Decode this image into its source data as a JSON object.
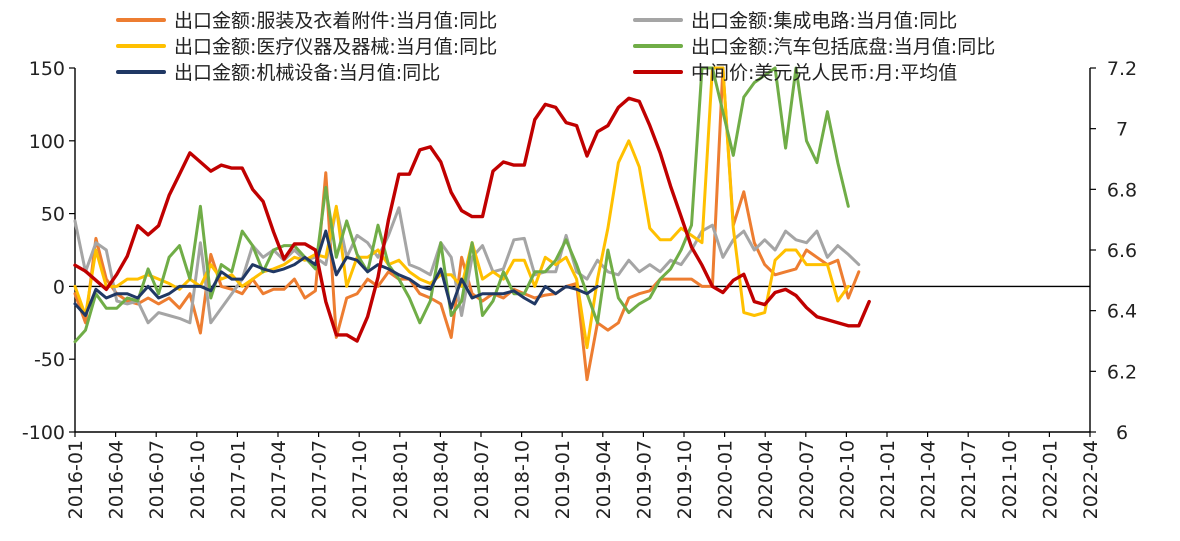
{
  "chart_data": {
    "type": "line",
    "title": "",
    "xlabel": "",
    "ylabel": "",
    "y2label": "",
    "ylim": [
      -100,
      150
    ],
    "y2lim": [
      6.0,
      7.2
    ],
    "yticks": [
      "150",
      "100",
      "50",
      "0",
      "-50",
      "-100"
    ],
    "y2ticks": [
      "7.2",
      "7",
      "6.8",
      "6.6",
      "6.4",
      "6.2",
      "6"
    ],
    "xticks": [
      "2016-01",
      "2016-04",
      "2016-07",
      "2016-10",
      "2017-01",
      "2017-04",
      "2017-07",
      "2017-10",
      "2018-01",
      "2018-04",
      "2018-07",
      "2018-10",
      "2019-01",
      "2019-04",
      "2019-07",
      "2019-10",
      "2020-01",
      "2020-04",
      "2020-07",
      "2020-10",
      "2021-01",
      "2021-04",
      "2021-07",
      "2021-10",
      "2022-01",
      "2022-04"
    ],
    "legend_position": "top",
    "series": [
      {
        "name": "出口金额:服装及衣着附件:当月值:同比",
        "color": "#ED7D31",
        "axis": "left",
        "values": [
          -5,
          -25,
          33,
          5,
          -5,
          -10,
          -12,
          -8,
          -12,
          -8,
          -15,
          -5,
          -32,
          22,
          0,
          -2,
          -5,
          5,
          -5,
          -2,
          -2,
          5,
          -8,
          -3,
          78,
          -35,
          -8,
          -5,
          5,
          0,
          10,
          5,
          5,
          -5,
          -8,
          -12,
          -35,
          20,
          -5,
          -10,
          -5,
          -8,
          -2,
          -5,
          -8,
          -6,
          -5,
          0,
          2,
          -64,
          -25,
          -30,
          -25,
          -8,
          -5,
          -3,
          5,
          5,
          5,
          5,
          0,
          0,
          150,
          42,
          65,
          30,
          15,
          8,
          10,
          12,
          25,
          20,
          15,
          18,
          -8,
          10
        ]
      },
      {
        "name": "出口金额:集成电路:当月值:同比",
        "color": "#A5A5A5",
        "axis": "left",
        "values": [
          45,
          10,
          30,
          25,
          -10,
          -12,
          -10,
          -25,
          -18,
          -20,
          -22,
          -25,
          30,
          -25,
          -15,
          -5,
          5,
          28,
          20,
          25,
          18,
          25,
          18,
          20,
          15,
          54,
          20,
          35,
          30,
          20,
          35,
          54,
          15,
          12,
          8,
          30,
          20,
          -20,
          20,
          28,
          10,
          12,
          32,
          33,
          8,
          10,
          10,
          35,
          10,
          5,
          18,
          10,
          8,
          18,
          10,
          15,
          10,
          18,
          15,
          25,
          38,
          42,
          20,
          32,
          38,
          25,
          32,
          25,
          38,
          32,
          30,
          38,
          20,
          28,
          22,
          15
        ]
      },
      {
        "name": "出口金额:医疗仪器及器械:当月值:同比",
        "color": "#FFC000",
        "axis": "left",
        "values": [
          0,
          -20,
          25,
          0,
          0,
          5,
          5,
          8,
          5,
          2,
          -2,
          5,
          0,
          15,
          5,
          8,
          0,
          5,
          10,
          12,
          15,
          20,
          18,
          22,
          20,
          55,
          0,
          20,
          20,
          25,
          15,
          18,
          10,
          5,
          2,
          8,
          8,
          0,
          30,
          5,
          10,
          5,
          18,
          18,
          0,
          20,
          15,
          20,
          5,
          -42,
          5,
          40,
          85,
          100,
          82,
          40,
          32,
          32,
          40,
          35,
          30,
          150,
          150,
          40,
          -18,
          -20,
          -18,
          18,
          25,
          25,
          15,
          15,
          15,
          -10,
          0
        ]
      },
      {
        "name": "出口金额:汽车包括底盘:当月值:同比",
        "color": "#70AD47",
        "axis": "left",
        "values": [
          -38,
          -30,
          -5,
          -15,
          -15,
          -8,
          -10,
          12,
          -5,
          20,
          28,
          5,
          55,
          -8,
          15,
          10,
          38,
          28,
          10,
          25,
          28,
          28,
          20,
          12,
          68,
          20,
          45,
          22,
          10,
          42,
          15,
          5,
          -8,
          -25,
          -10,
          30,
          -20,
          -10,
          30,
          -20,
          -10,
          10,
          -5,
          -5,
          10,
          10,
          18,
          32,
          15,
          -5,
          -25,
          25,
          -8,
          -18,
          -12,
          -8,
          5,
          12,
          25,
          42,
          150,
          150,
          120,
          90,
          130,
          140,
          145,
          150,
          95,
          150,
          100,
          85,
          120,
          85,
          55
        ]
      },
      {
        "name": "出口金额:机械设备:当月值:同比",
        "color": "#203864",
        "axis": "left",
        "values": [
          -12,
          -20,
          -2,
          -8,
          -5,
          -5,
          -8,
          0,
          -8,
          -5,
          0,
          0,
          0,
          -3,
          10,
          5,
          5,
          15,
          12,
          10,
          12,
          15,
          20,
          15,
          38,
          8,
          20,
          18,
          10,
          15,
          12,
          8,
          5,
          0,
          -2,
          12,
          -15,
          5,
          -8,
          -5,
          -5,
          -5,
          -3,
          -8,
          -12,
          0,
          -5,
          0,
          -2,
          -5,
          0
        ]
      },
      {
        "name": "中间价:美元兑人民币:月:平均值",
        "color": "#C00000",
        "axis": "right",
        "values": [
          6.55,
          6.53,
          6.5,
          6.47,
          6.52,
          6.58,
          6.68,
          6.65,
          6.68,
          6.78,
          6.85,
          6.92,
          6.89,
          6.86,
          6.88,
          6.87,
          6.87,
          6.8,
          6.76,
          6.66,
          6.57,
          6.62,
          6.62,
          6.6,
          6.43,
          6.32,
          6.32,
          6.3,
          6.38,
          6.51,
          6.7,
          6.85,
          6.85,
          6.93,
          6.94,
          6.89,
          6.79,
          6.73,
          6.71,
          6.71,
          6.86,
          6.89,
          6.88,
          6.88,
          7.03,
          7.08,
          7.07,
          7.02,
          7.01,
          6.91,
          6.99,
          7.01,
          7.07,
          7.1,
          7.09,
          7.01,
          6.92,
          6.81,
          6.71,
          6.61,
          6.55,
          6.48,
          6.46,
          6.5,
          6.52,
          6.43,
          6.42,
          6.46,
          6.47,
          6.45,
          6.41,
          6.38,
          6.37,
          6.36,
          6.35,
          6.35,
          6.43
        ]
      }
    ]
  }
}
